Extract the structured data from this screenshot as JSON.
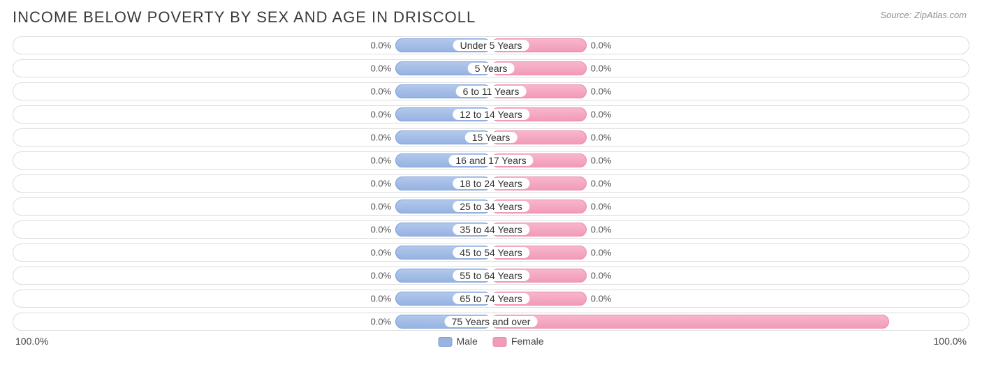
{
  "title": "INCOME BELOW POVERTY BY SEX AND AGE IN DRISCOLL",
  "source": "Source: ZipAtlas.com",
  "chart": {
    "type": "population-pyramid",
    "male_color": "#97b3e2",
    "female_color": "#f29bb8",
    "track_border": "#dcdcdc",
    "background": "#ffffff",
    "min_bar_pct": 20,
    "axis_max_label": "100.0%",
    "rows": [
      {
        "age": "Under 5 Years",
        "male": 0.0,
        "female": 0.0
      },
      {
        "age": "5 Years",
        "male": 0.0,
        "female": 0.0
      },
      {
        "age": "6 to 11 Years",
        "male": 0.0,
        "female": 0.0
      },
      {
        "age": "12 to 14 Years",
        "male": 0.0,
        "female": 0.0
      },
      {
        "age": "15 Years",
        "male": 0.0,
        "female": 0.0
      },
      {
        "age": "16 and 17 Years",
        "male": 0.0,
        "female": 0.0
      },
      {
        "age": "18 to 24 Years",
        "male": 0.0,
        "female": 0.0
      },
      {
        "age": "25 to 34 Years",
        "male": 0.0,
        "female": 0.0
      },
      {
        "age": "35 to 44 Years",
        "male": 0.0,
        "female": 0.0
      },
      {
        "age": "45 to 54 Years",
        "male": 0.0,
        "female": 0.0
      },
      {
        "age": "55 to 64 Years",
        "male": 0.0,
        "female": 0.0
      },
      {
        "age": "65 to 74 Years",
        "male": 0.0,
        "female": 0.0
      },
      {
        "age": "75 Years and over",
        "male": 0.0,
        "female": 83.3
      }
    ]
  },
  "legend": {
    "male": "Male",
    "female": "Female"
  }
}
